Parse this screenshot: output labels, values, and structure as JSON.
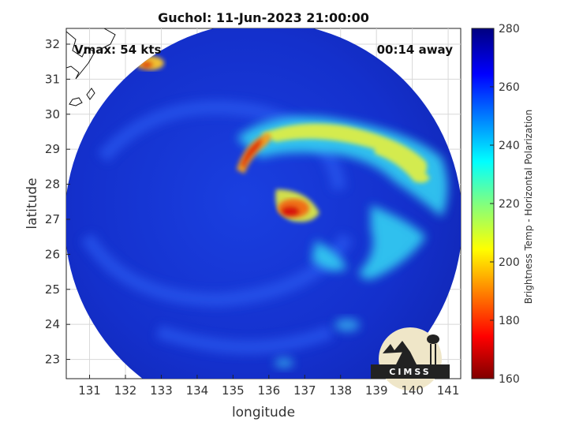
{
  "title": "Guchol: 11-Jun-2023 21:00:00",
  "vmax_label": "Vmax: 54 kts",
  "time_label": "00:14 away",
  "xlabel": "longitude",
  "ylabel": "latitude",
  "x_ticks": [
    "131",
    "132",
    "133",
    "134",
    "135",
    "136",
    "137",
    "138",
    "139",
    "140",
    "141"
  ],
  "y_ticks": [
    "32",
    "31",
    "30",
    "29",
    "28",
    "27",
    "26",
    "25",
    "24",
    "23"
  ],
  "colorbar": {
    "label": "Brightness Temp - Horizontal Polarization",
    "ticks": [
      "280",
      "260",
      "240",
      "220",
      "200",
      "180",
      "160"
    ],
    "min": 160,
    "max": 280,
    "colormap": "jet"
  },
  "logo_text": "CIMSS",
  "colors": {
    "background_field": "#1432d2",
    "rainband_cyan": "#3cd2f0",
    "rainband_yellow": "#f0e640",
    "core_red": "#e02010",
    "grid": "#d8d8d8"
  }
}
